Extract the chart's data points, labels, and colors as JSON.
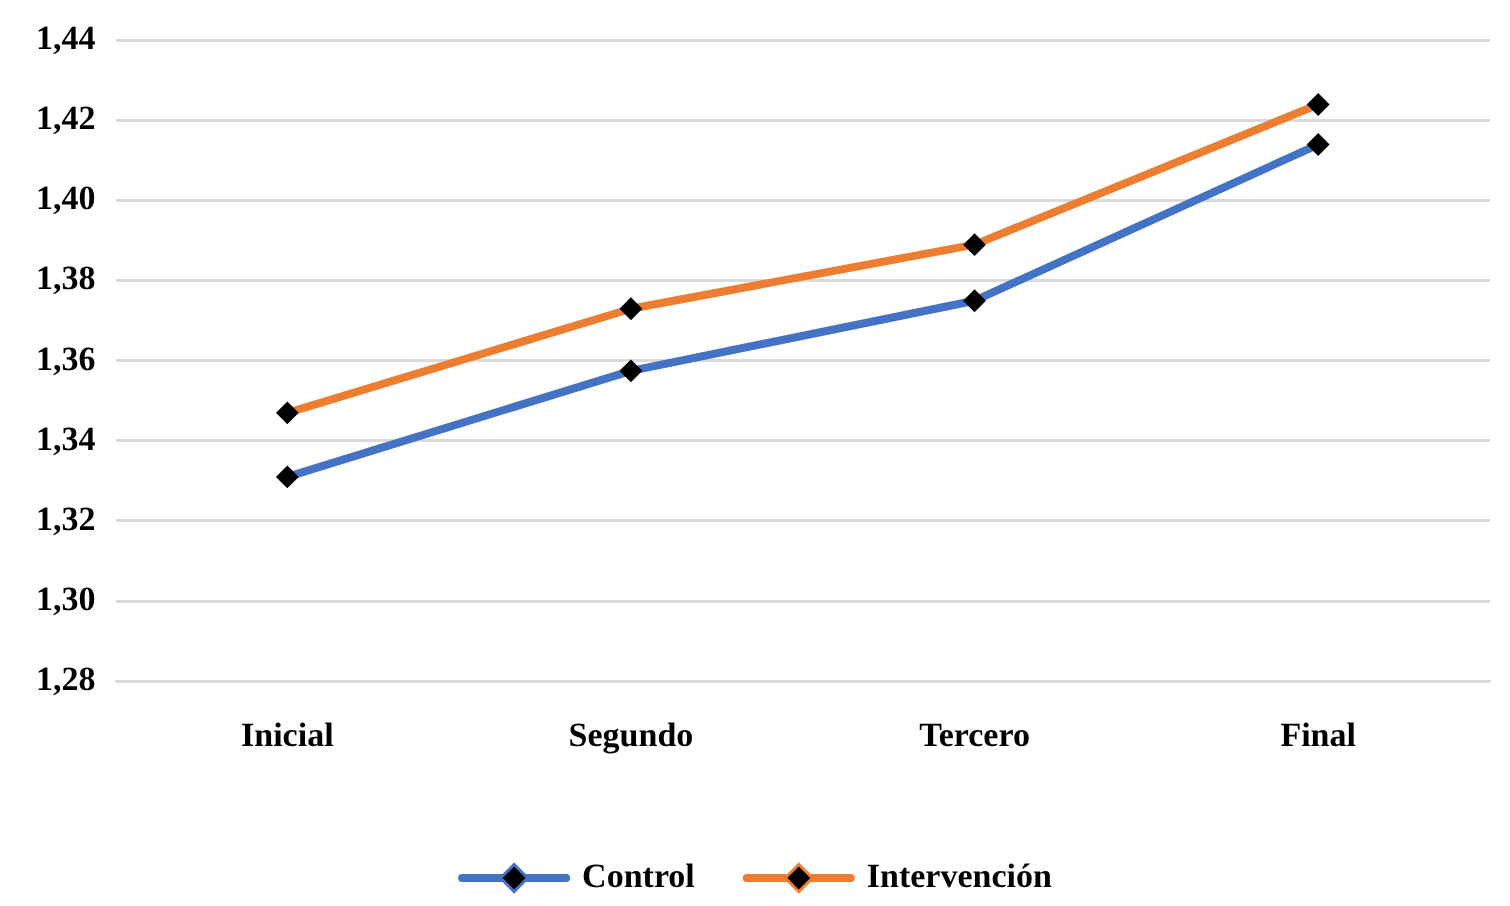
{
  "chart_data": {
    "type": "line",
    "categories": [
      "Inicial",
      "Segundo",
      "Tercero",
      "Final"
    ],
    "series": [
      {
        "name": "Control",
        "color": "#4472c4",
        "values": [
          1.331,
          1.3575,
          1.375,
          1.414
        ]
      },
      {
        "name": "Intervención",
        "color": "#ed7d31",
        "values": [
          1.347,
          1.373,
          1.389,
          1.424
        ]
      }
    ],
    "ylim": [
      1.28,
      1.44
    ],
    "yticks": [
      {
        "value": 1.28,
        "label": "1,28"
      },
      {
        "value": 1.3,
        "label": "1,30"
      },
      {
        "value": 1.32,
        "label": "1,32"
      },
      {
        "value": 1.34,
        "label": "1,34"
      },
      {
        "value": 1.36,
        "label": "1,36"
      },
      {
        "value": 1.38,
        "label": "1,38"
      },
      {
        "value": 1.4,
        "label": "1,40"
      },
      {
        "value": 1.42,
        "label": "1,42"
      },
      {
        "value": 1.44,
        "label": "1,44"
      }
    ],
    "grid": "y",
    "legend": "bottom",
    "marker": "diamond",
    "line_style": "solid"
  }
}
